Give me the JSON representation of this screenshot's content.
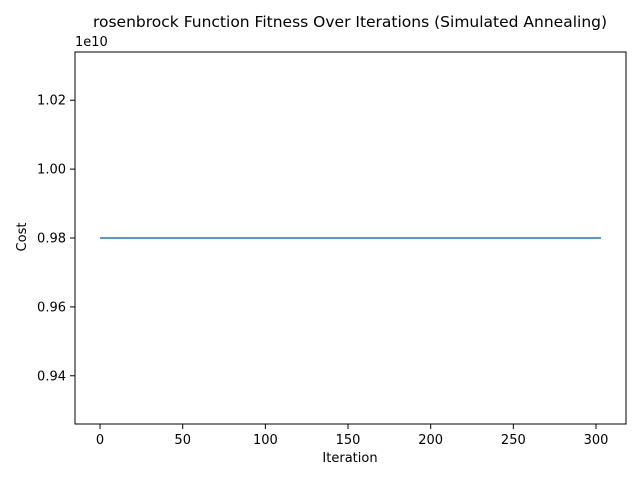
{
  "chart_data": {
    "type": "line",
    "title": "rosenbrock Function Fitness Over Iterations (Simulated Annealing)",
    "xlabel": "Iteration",
    "ylabel": "Cost",
    "y_offset_label": "1e10",
    "xlim": [
      -15.15,
      318.15
    ],
    "ylim": [
      0.926,
      1.034
    ],
    "x_ticks": [
      0,
      50,
      100,
      150,
      200,
      250,
      300
    ],
    "x_tick_labels": [
      "0",
      "50",
      "100",
      "150",
      "200",
      "250",
      "300"
    ],
    "y_ticks": [
      0.94,
      0.96,
      0.98,
      1.0,
      1.02
    ],
    "y_tick_labels": [
      "0.94",
      "0.96",
      "0.98",
      "1.00",
      "1.02"
    ],
    "grid": false,
    "legend": "none",
    "series": [
      {
        "color": "#1f77b4",
        "x": [
          0,
          303
        ],
        "values": [
          0.98,
          0.98
        ]
      }
    ]
  }
}
